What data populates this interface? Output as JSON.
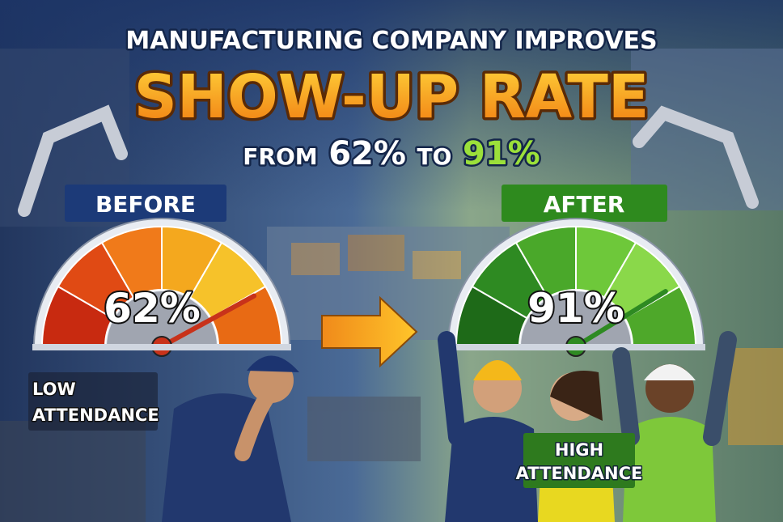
{
  "header": {
    "kicker": "MANUFACTURING COMPANY IMPROVES",
    "title": "SHOW-UP RATE",
    "subtitle": {
      "from": "FROM",
      "before": "62%",
      "to": "TO",
      "after": "91%"
    }
  },
  "before": {
    "label": "BEFORE",
    "gauge": "62%",
    "caption": [
      "LOW",
      "ATTENDANCE"
    ]
  },
  "after": {
    "label": "AFTER",
    "gauge": "91%",
    "caption": [
      "HIGH",
      "ATTENDANCE"
    ]
  }
}
